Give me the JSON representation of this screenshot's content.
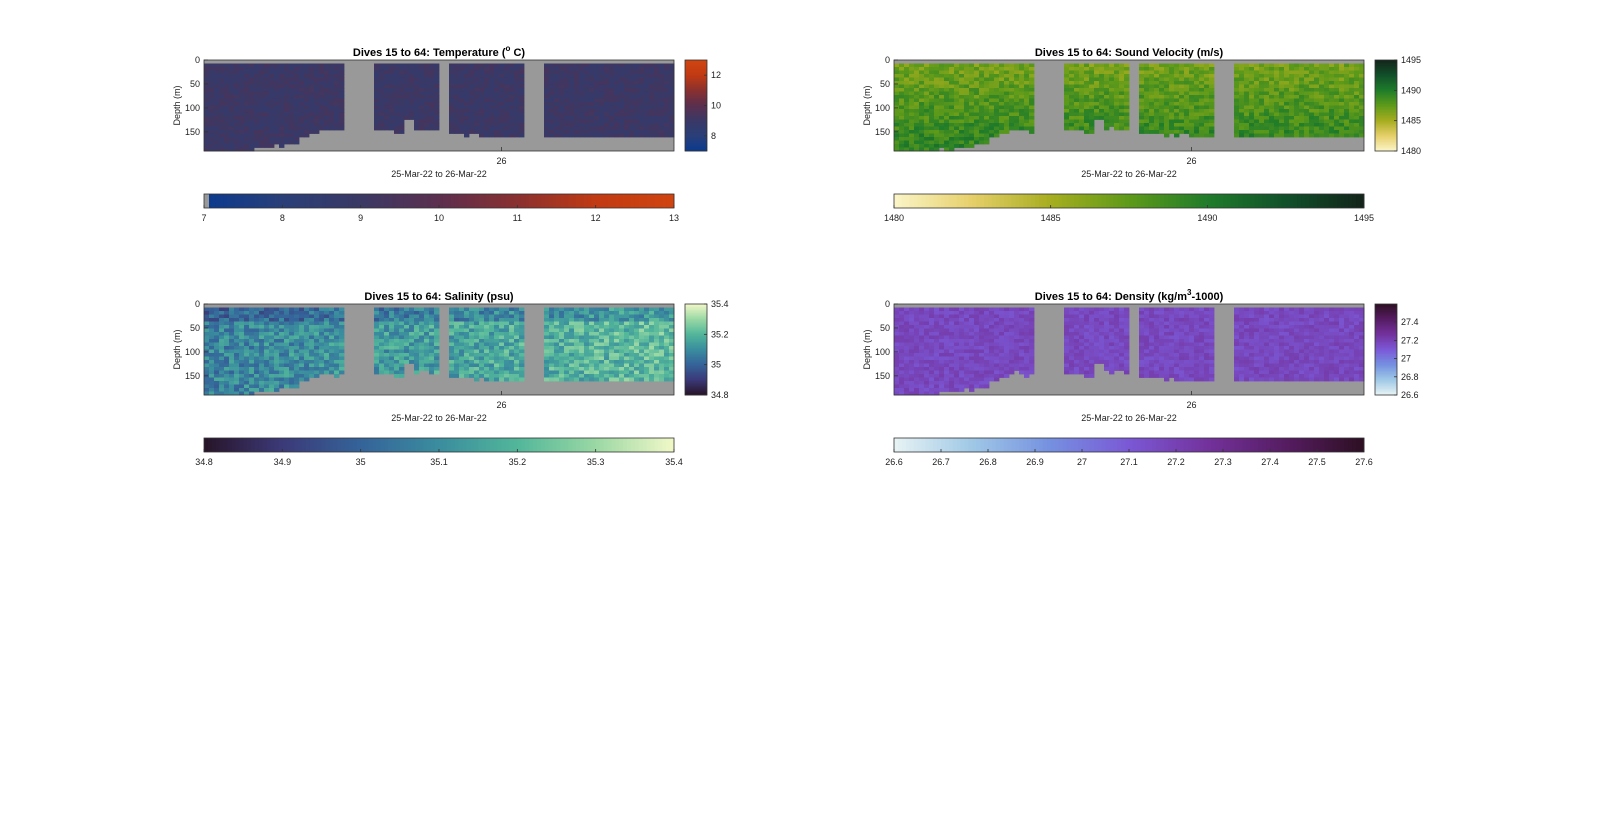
{
  "chart_data": [
    {
      "type": "heatmap",
      "id": "temperature",
      "title_parts": [
        "Dives 15 to 64: Temperature (",
        "o",
        " C)"
      ],
      "xlabel": "25-Mar-22 to 26-Mar-22",
      "x_tick_labels": [
        "26"
      ],
      "ylabel": "Depth (m)",
      "y_ticks": [
        0,
        50,
        100,
        150
      ],
      "ylim": [
        0,
        190
      ],
      "clim": [
        7,
        13
      ],
      "side_colorbar_ticks": [
        8,
        10,
        12
      ],
      "bottom_colorbar_ticks": [
        7,
        8,
        9,
        10,
        11,
        12,
        13
      ],
      "colormap": [
        "#0b3a8f",
        "#2a3f78",
        "#3a3865",
        "#5b2f4e",
        "#8a3030",
        "#c13a12",
        "#d04410"
      ],
      "typical_value": 9.0,
      "value_spread": 0.35,
      "gaps": [
        [
          0.3,
          0.36
        ],
        [
          0.5,
          0.52
        ],
        [
          0.68,
          0.72
        ]
      ],
      "depth_profile": [
        185,
        187,
        188,
        186,
        182,
        178,
        175,
        170,
        160,
        150,
        140,
        145,
        140,
        135,
        140,
        145,
        150,
        120,
        140,
        140,
        145,
        150,
        152,
        154,
        155,
        156,
        156,
        157,
        157,
        158,
        158,
        158,
        158,
        158,
        158,
        158,
        158,
        158,
        158,
        158
      ]
    },
    {
      "type": "heatmap",
      "id": "sound-velocity",
      "title_parts": [
        "Dives 15 to 64: Sound Velocity (m/s)"
      ],
      "xlabel": "25-Mar-22 to 26-Mar-22",
      "x_tick_labels": [
        "26"
      ],
      "ylabel": "Depth (m)",
      "y_ticks": [
        0,
        50,
        100,
        150
      ],
      "ylim": [
        0,
        190
      ],
      "clim": [
        1480,
        1495
      ],
      "side_colorbar_ticks": [
        1480,
        1485,
        1490,
        1495
      ],
      "bottom_colorbar_ticks": [
        1480,
        1485,
        1490,
        1495
      ],
      "colormap": [
        "#fbf5c8",
        "#e6cf6a",
        "#a6ad1f",
        "#5e9a1a",
        "#1f7c2a",
        "#11502a",
        "#13241a"
      ],
      "typical_value": 1487.5,
      "value_spread": 1.4,
      "gaps": [
        [
          0.3,
          0.36
        ],
        [
          0.5,
          0.52
        ],
        [
          0.68,
          0.72
        ]
      ],
      "depth_profile": [
        185,
        187,
        188,
        186,
        182,
        178,
        175,
        170,
        160,
        150,
        140,
        145,
        140,
        135,
        140,
        145,
        150,
        120,
        140,
        140,
        145,
        150,
        152,
        154,
        155,
        156,
        156,
        157,
        157,
        158,
        158,
        158,
        158,
        158,
        158,
        158,
        158,
        158,
        158,
        158
      ]
    },
    {
      "type": "heatmap",
      "id": "salinity",
      "title_parts": [
        "Dives 15 to 64: Salinity (psu)"
      ],
      "xlabel": "25-Mar-22 to 26-Mar-22",
      "x_tick_labels": [
        "26"
      ],
      "ylabel": "Depth (m)",
      "y_ticks": [
        0,
        50,
        100,
        150
      ],
      "ylim": [
        0,
        190
      ],
      "clim": [
        34.8,
        35.4
      ],
      "side_colorbar_ticks": [
        34.8,
        35,
        35.2,
        35.4
      ],
      "bottom_colorbar_ticks": [
        34.8,
        34.9,
        35,
        35.1,
        35.2,
        35.3,
        35.4
      ],
      "colormap": [
        "#281428",
        "#3b3a78",
        "#35639a",
        "#3a8d9e",
        "#52b69a",
        "#9ad8a4",
        "#f2f8c8"
      ],
      "typical_value": 35.12,
      "value_spread": 0.09,
      "gaps": [
        [
          0.3,
          0.36
        ],
        [
          0.5,
          0.52
        ],
        [
          0.68,
          0.72
        ]
      ],
      "depth_profile": [
        185,
        187,
        188,
        186,
        182,
        178,
        175,
        170,
        160,
        150,
        140,
        145,
        140,
        135,
        140,
        145,
        150,
        120,
        140,
        140,
        145,
        150,
        152,
        154,
        155,
        156,
        156,
        157,
        157,
        158,
        158,
        158,
        158,
        158,
        158,
        158,
        158,
        158,
        158,
        158
      ]
    },
    {
      "type": "heatmap",
      "id": "density",
      "title_parts": [
        "Dives 15 to 64: Density (kg/m",
        "3",
        "-1000)"
      ],
      "xlabel": "25-Mar-22 to 26-Mar-22",
      "x_tick_labels": [
        "26"
      ],
      "ylabel": "Depth (m)",
      "y_ticks": [
        0,
        50,
        100,
        150
      ],
      "ylim": [
        0,
        190
      ],
      "clim": [
        26.6,
        27.6
      ],
      "side_colorbar_ticks": [
        26.6,
        26.8,
        27,
        27.2,
        27.4
      ],
      "bottom_colorbar_ticks": [
        26.6,
        26.7,
        26.8,
        26.9,
        27,
        27.1,
        27.2,
        27.3,
        27.4,
        27.5,
        27.6
      ],
      "colormap": [
        "#e8f3f4",
        "#9fc8e6",
        "#7590e0",
        "#7b58d6",
        "#73329c",
        "#561c62",
        "#2d0f22"
      ],
      "typical_value": 27.17,
      "value_spread": 0.05,
      "gaps": [
        [
          0.3,
          0.36
        ],
        [
          0.5,
          0.52
        ],
        [
          0.68,
          0.72
        ]
      ],
      "depth_profile": [
        185,
        187,
        188,
        186,
        182,
        178,
        175,
        170,
        160,
        150,
        140,
        145,
        140,
        135,
        140,
        145,
        150,
        120,
        140,
        140,
        145,
        150,
        152,
        154,
        155,
        156,
        156,
        157,
        157,
        158,
        158,
        158,
        158,
        158,
        158,
        158,
        158,
        158,
        158,
        158
      ]
    }
  ]
}
